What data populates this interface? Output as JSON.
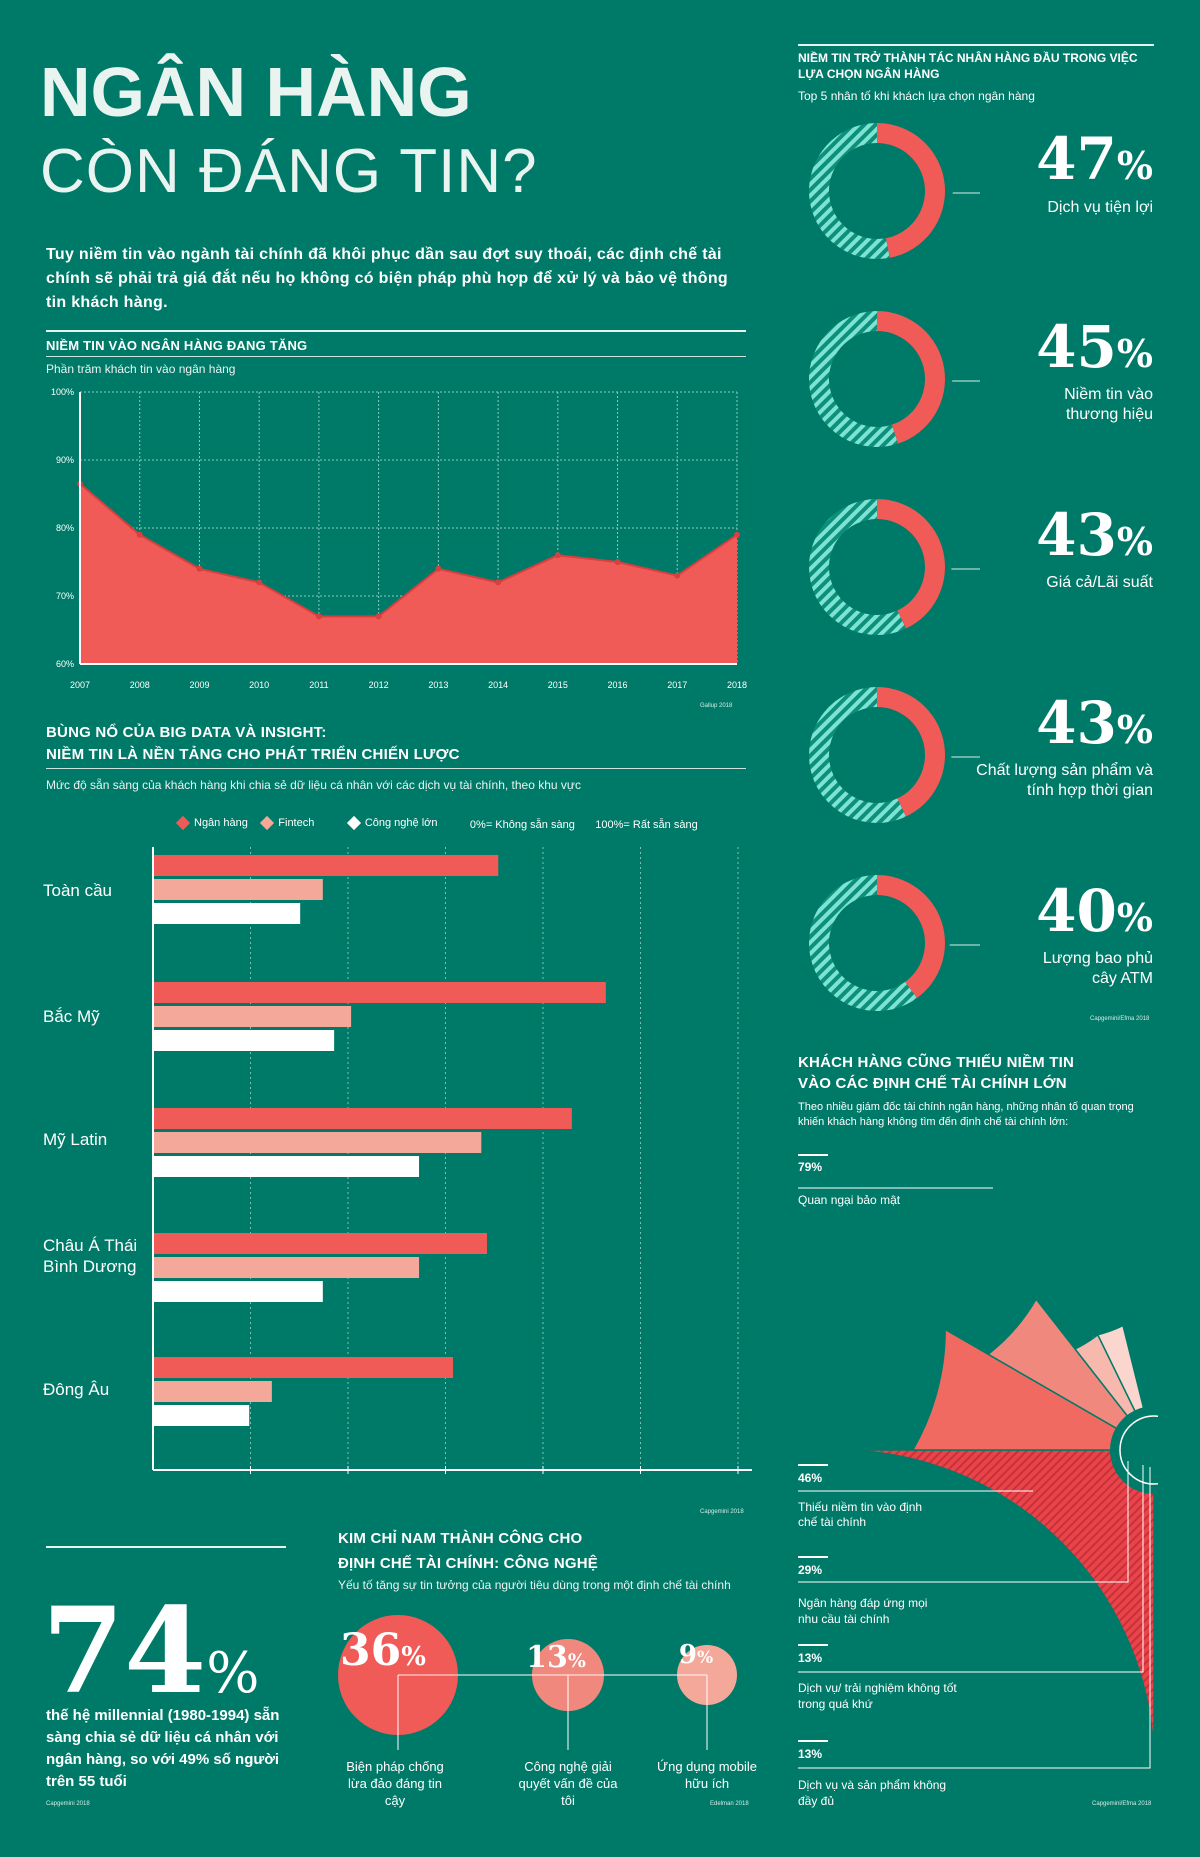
{
  "header": {
    "title_line1": "NGÂN HÀNG",
    "title_line2": "CÒN ĐÁNG TIN?",
    "intro": "Tuy niềm tin vào ngành tài chính đã khôi phục dần sau đợt suy thoái, các định chế tài chính sẽ phải trả giá đắt nếu họ không có biện pháp phù hợp để xử lý và bảo vệ thông tin khách hàng."
  },
  "colors": {
    "background": "#007a68",
    "red": "#f05a57",
    "salmon": "#f4a89a",
    "white": "#ffffff",
    "teal_stripe": "#3ec9b3"
  },
  "chart_data": [
    {
      "type": "area",
      "title": "NIỀM TIN VÀO NGÂN HÀNG ĐANG TĂNG",
      "subtitle": "Phần trăm khách tin vào ngân hàng",
      "x": [
        "2007",
        "2008",
        "2009",
        "2010",
        "2011",
        "2012",
        "2013",
        "2014",
        "2015",
        "2016",
        "2017",
        "2018"
      ],
      "values": [
        86.5,
        79,
        74,
        72,
        67,
        67,
        74,
        72,
        76,
        75,
        73,
        79
      ],
      "ylim": [
        60,
        100
      ],
      "yticks": [
        "100%",
        "90%",
        "80%",
        "70%",
        "60%"
      ],
      "grid": true,
      "source": "Gallup 2018"
    },
    {
      "type": "bar",
      "orientation": "horizontal",
      "title_line1": "BÙNG NỔ CỦA BIG DATA VÀ INSIGHT:",
      "title_line2": "NIỀM TIN LÀ NỀN TẢNG CHO PHÁT TRIỂN CHIẾN LƯỢC",
      "subtitle": "Mức độ sẵn sàng của khách hàng khi chia sẻ dữ liệu cá nhân với các dịch vụ tài chính, theo khu vực",
      "legend": [
        "Ngân hàng",
        "Fintech",
        "Công nghệ lớn"
      ],
      "scale_note_low": "0%= Không sẵn sàng",
      "scale_note_high": "100%= Rất sẵn sàng",
      "categories": [
        "Toàn cầu",
        "Bắc Mỹ",
        "Mỹ Latin",
        "Châu Á Thái Bình Dương",
        "Đông Âu"
      ],
      "series": [
        {
          "name": "Ngân hàng",
          "values": [
            61,
            80,
            74,
            59,
            53
          ]
        },
        {
          "name": "Fintech",
          "values": [
            30,
            35,
            58,
            47,
            21
          ]
        },
        {
          "name": "Công nghệ lớn",
          "values": [
            26,
            32,
            47,
            30,
            17
          ]
        }
      ],
      "xlim": [
        0,
        100
      ],
      "source": "Capgemini 2018"
    },
    {
      "type": "pie",
      "kind": "donuts",
      "title": "NIỀM TIN TRỞ THÀNH TÁC NHÂN HÀNG ĐẦU TRONG VIỆC LỰA CHỌN NGÂN HÀNG",
      "subtitle": "Top 5 nhân tố khi khách lựa chọn ngân hàng",
      "items": [
        {
          "value": 47,
          "pct": "47",
          "label": "Dịch vụ tiện lợi"
        },
        {
          "value": 45,
          "pct": "45",
          "label": "Niềm tin vào thương hiệu"
        },
        {
          "value": 43,
          "pct": "43",
          "label": "Giá cả/Lãi suất"
        },
        {
          "value": 43,
          "pct": "43",
          "label": "Chất lượng sản phẩm và tính hợp thời gian"
        },
        {
          "value": 40,
          "pct": "40",
          "label": "Lượng bao phủ cây ATM"
        }
      ],
      "source": "Capgemini/Efma 2018"
    },
    {
      "type": "pie",
      "kind": "radial",
      "title_line1": "KHÁCH HÀNG CŨNG THIẾU NIỀM TIN",
      "title_line2": "VÀO CÁC ĐỊNH CHẾ TÀI CHÍNH LỚN",
      "subtitle": "Theo nhiều giám đốc tài chính ngân hàng, những nhân tố quan trọng khiến khách hàng không tìm đến định chế tài chính lớn:",
      "items": [
        {
          "value": 79,
          "pct": "79%",
          "label": "Quan ngại bảo mật"
        },
        {
          "value": 46,
          "pct": "46%",
          "label": "Thiếu niềm tin vào định chế tài chính"
        },
        {
          "value": 29,
          "pct": "29%",
          "label": "Ngân hàng đáp ứng mọi nhu cầu tài chính"
        },
        {
          "value": 13,
          "pct": "13%",
          "label": "Dịch vụ/ trải nghiệm không tốt trong quá khứ"
        },
        {
          "value": 13,
          "pct": "13%",
          "label": "Dịch vụ và sản phẩm không đầy đủ"
        }
      ],
      "source": "Capgemini/Efma 2018"
    },
    {
      "type": "scatter",
      "kind": "bubbles",
      "title_line1": "KIM CHỈ NAM THÀNH CÔNG CHO",
      "title_line2": "ĐỊNH CHẾ TÀI CHÍNH: CÔNG NGHỆ",
      "subtitle": "Yếu tố tăng sự tin tưởng của người tiêu dùng trong một định chế tài chính",
      "items": [
        {
          "value": 36,
          "pct": "36",
          "label": "Biện pháp chống lừa đảo đáng tin cậy"
        },
        {
          "value": 13,
          "pct": "13",
          "label": "Công nghệ giải quyết vấn đề của tôi"
        },
        {
          "value": 9,
          "pct": "9",
          "label": "Ứng dụng mobile hữu ích"
        }
      ],
      "source": "Edelman 2018"
    }
  ],
  "stat": {
    "value": "74",
    "percent_sign": "%",
    "text": "thế hệ millennial (1980-1994) sẵn sàng chia sẻ dữ liệu cá nhân với ngân hàng, so với 49% số người trên 55 tuổi",
    "source": "Capgemini 2018"
  }
}
